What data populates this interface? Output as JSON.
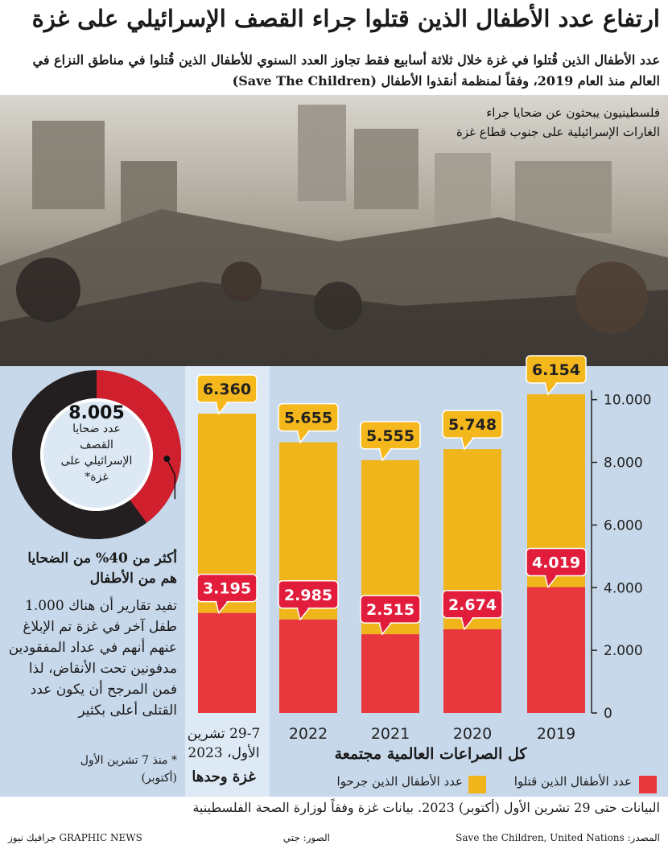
{
  "header": {
    "title": "ارتفاع عدد الأطفال الذين قتلوا جراء القصف الإسرائيلي على غزة",
    "subtitle": "عدد الأطفال الذين قُتلوا في غزة خلال ثلاثة أسابيع فقط تجاوز العدد السنوي للأطفال الذين قُتلوا في مناطق النزاع في العالم منذ العام 2019، وفقاً لمنظمة أنقذوا الأطفال (Save The Children)"
  },
  "photo": {
    "caption": "فلسطينيون يبحثون عن ضحايا جراء الغارات الإسرائيلية على جنوب قطاع غزة"
  },
  "chart_data": {
    "type": "stacked_bar",
    "categories": [
      "29-7 تشرين الأول، 2023",
      "2022",
      "2021",
      "2020",
      "2019"
    ],
    "series": [
      {
        "name": "عدد الأطفال الذين قتلوا",
        "color": "#e8383d",
        "values": [
          3195,
          2985,
          2515,
          2674,
          4019
        ],
        "value_labels": [
          "3.195",
          "2.985",
          "2.515",
          "2.674",
          "4.019"
        ]
      },
      {
        "name": "عدد الأطفال الذين جرحوا",
        "color": "#f1b51c",
        "values": [
          6360,
          5655,
          5555,
          5748,
          6154
        ],
        "value_labels": [
          "6.360",
          "5.655",
          "5.555",
          "5.748",
          "6.154"
        ]
      }
    ],
    "ylim": [
      0,
      10300
    ],
    "yticks": [
      0,
      {
        "value": 2000,
        "label": "2.000"
      },
      {
        "value": 4000,
        "label": "4.000"
      },
      {
        "value": 6000,
        "label": "6.000"
      },
      {
        "value": 8000,
        "label": "8.000"
      },
      {
        "value": 10000,
        "label": "10.000"
      }
    ],
    "annotations": {
      "gaza_label": "غزة وحدها",
      "global_label": "كل الصراعات العالمية مجتمعة"
    },
    "donut": {
      "total": 8005,
      "total_label": "8.005",
      "caption": "عدد ضحايا القصف الإسرائيلي على غزة*"
    }
  },
  "side": {
    "highlight": "أكثر من 40% من الضحايا هم من الأطفال",
    "body": "تفيد تقارير أن هناك 1.000 طفل آخر في غزة تم الإبلاغ عنهم أنهم في عداد المفقودين مدفونين تحت الأنقاض، لذا فمن المرجح أن يكون عدد القتلى أعلى بكثير",
    "footnote": "* منذ 7 تشرين الأول (أكتوبر)"
  },
  "footer": {
    "note": "البيانات حتى 29 تشرين الأول (أكتوبر) 2023. بيانات غزة وفقاً لوزارة الصحة الفلسطينية",
    "source": "المصدر: Save the Children, United Nations",
    "photos": "الصور: جتي",
    "brand": "GRAPHIC NEWS جرافيك نيوز"
  }
}
